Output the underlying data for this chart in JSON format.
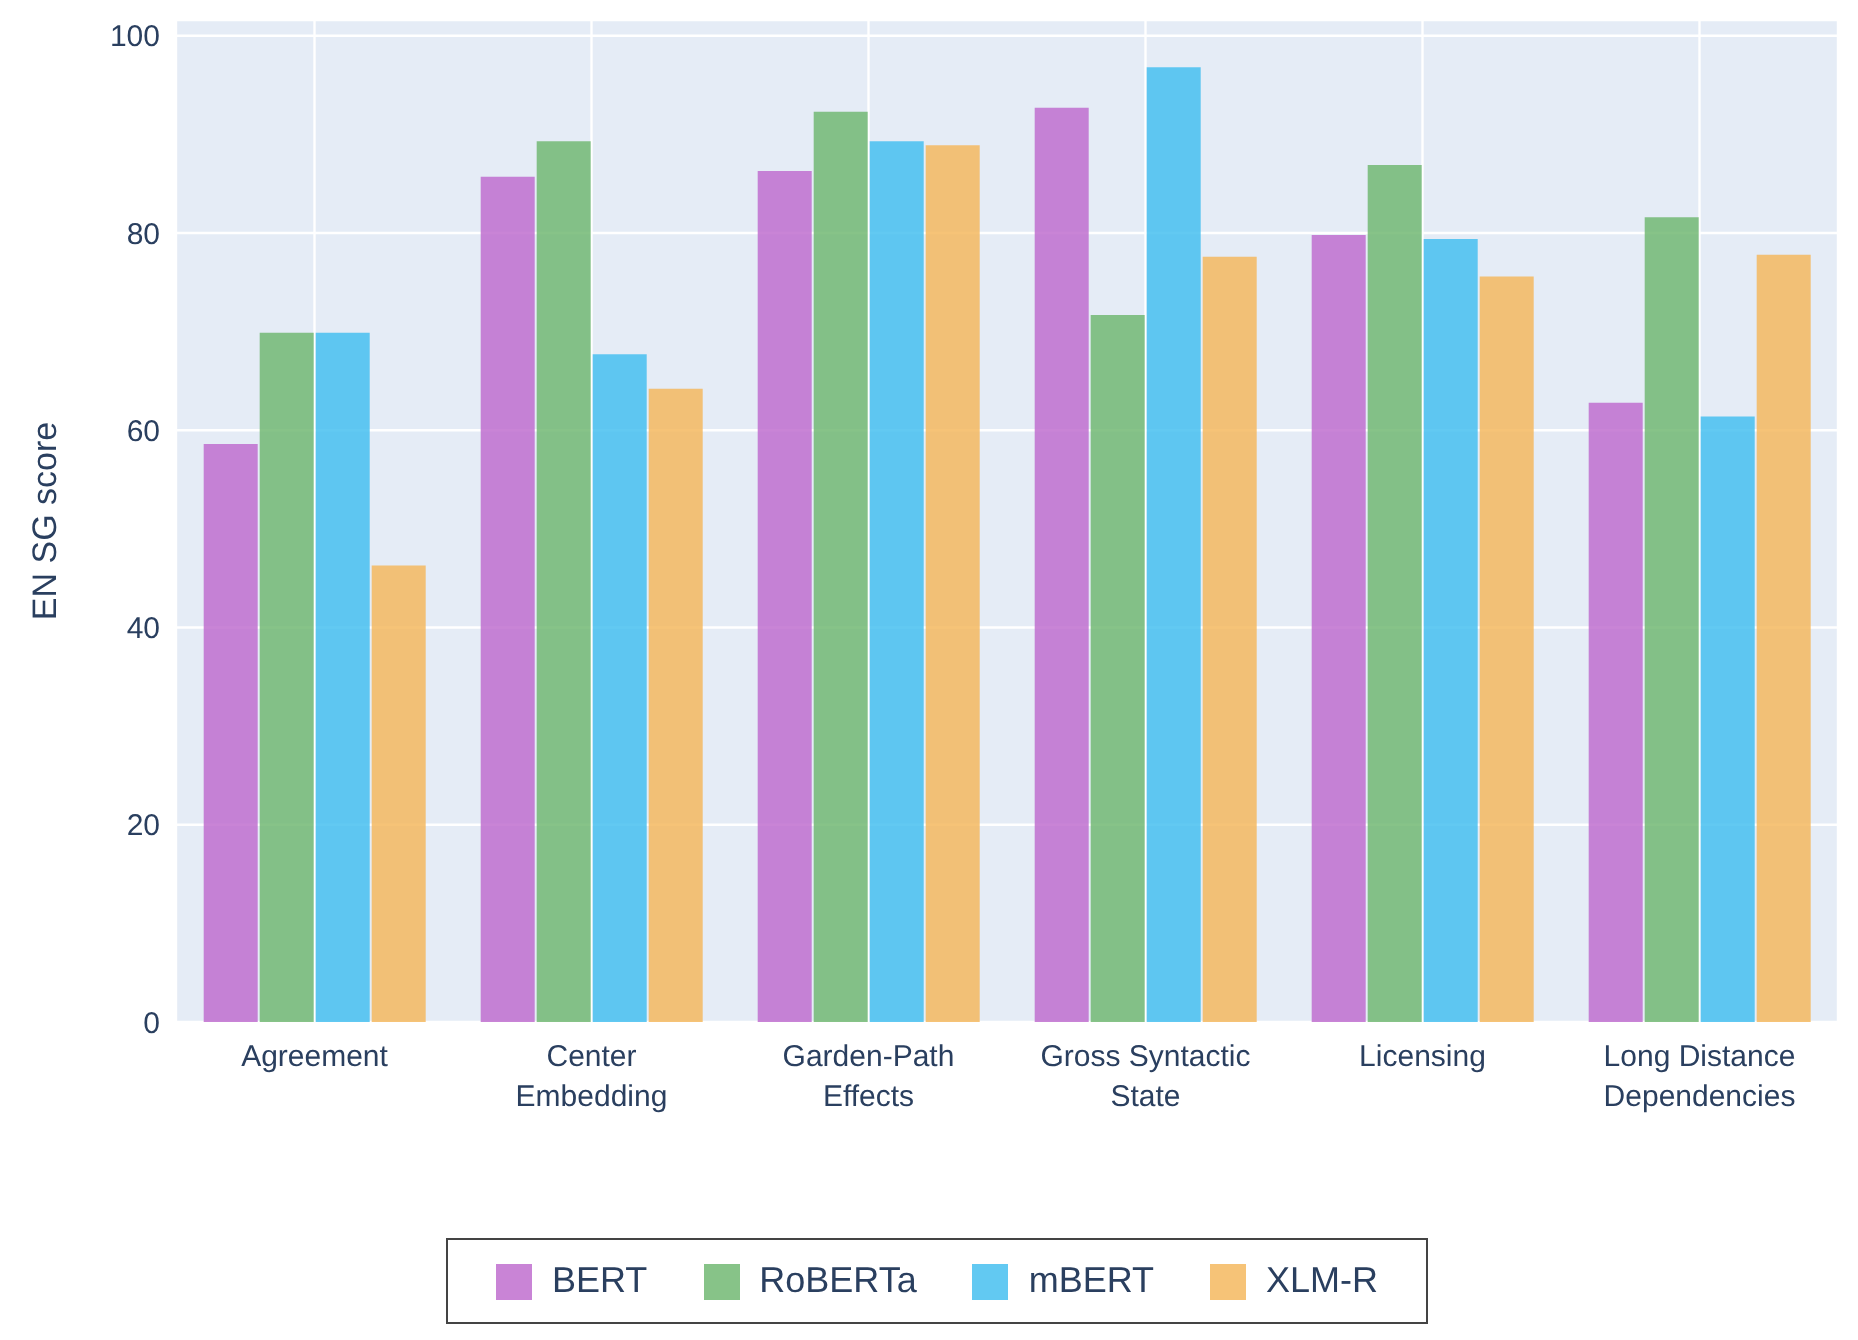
{
  "chart_data": {
    "type": "bar",
    "ylabel": "EN SG score",
    "categories": [
      "Agreement",
      "Center Embedding",
      "Garden-Path Effects",
      "Gross Syntactic State",
      "Licensing",
      "Long Distance Dependencies"
    ],
    "series": [
      {
        "name": "BERT",
        "color": "#bf6fcf",
        "values": [
          58.6,
          85.7,
          86.3,
          92.7,
          79.8,
          62.8
        ]
      },
      {
        "name": "RoBERTa",
        "color": "#72b973",
        "values": [
          69.9,
          89.3,
          92.3,
          71.7,
          86.9,
          81.6
        ]
      },
      {
        "name": "mBERT",
        "color": "#47bff0",
        "values": [
          69.9,
          67.7,
          89.3,
          96.8,
          79.4,
          61.4
        ]
      },
      {
        "name": "XLM-R",
        "color": "#f5b95f",
        "values": [
          46.3,
          64.2,
          88.9,
          77.6,
          75.6,
          77.8
        ]
      }
    ],
    "ylim": [
      0,
      101.6
    ],
    "yticks": [
      0,
      20,
      40,
      60,
      80,
      100
    ],
    "grid": true,
    "legend": "bottom"
  }
}
